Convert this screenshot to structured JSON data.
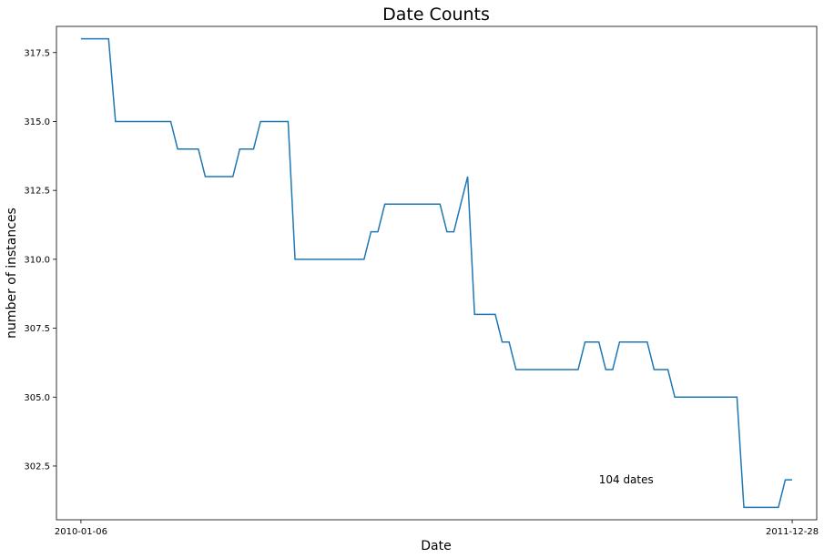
{
  "chart_data": {
    "type": "line",
    "title": "Date Counts",
    "xlabel": "Date",
    "ylabel": "number of instances",
    "x_tick_labels": [
      "2010-01-06",
      "2011-12-28"
    ],
    "x_tick_index": [
      0,
      103
    ],
    "y_ticks": [
      302.5,
      305.0,
      307.5,
      310.0,
      312.5,
      315.0,
      317.5
    ],
    "y_tick_labels": [
      "302.5",
      "305.0",
      "307.5",
      "310.0",
      "312.5",
      "315.0",
      "317.5"
    ],
    "ylim": [
      300.55,
      318.45
    ],
    "xlim": [
      -3.55,
      106.55
    ],
    "grid": false,
    "annotation": {
      "text": "104 dates",
      "x_index": 75,
      "y": 302.0
    },
    "series": [
      {
        "color": "#1f77b4",
        "y": [
          318,
          318,
          318,
          318,
          318,
          315,
          315,
          315,
          315,
          315,
          315,
          315,
          315,
          315,
          314,
          314,
          314,
          314,
          313,
          313,
          313,
          313,
          313,
          314,
          314,
          314,
          315,
          315,
          315,
          315,
          315,
          310,
          310,
          310,
          310,
          310,
          310,
          310,
          310,
          310,
          310,
          310,
          311,
          311,
          312,
          312,
          312,
          312,
          312,
          312,
          312,
          312,
          312,
          311,
          311,
          312,
          313,
          308,
          308,
          308,
          308,
          307,
          307,
          306,
          306,
          306,
          306,
          306,
          306,
          306,
          306,
          306,
          306,
          307,
          307,
          307,
          306,
          306,
          307,
          307,
          307,
          307,
          307,
          306,
          306,
          306,
          305,
          305,
          305,
          305,
          305,
          305,
          305,
          305,
          305,
          305,
          301,
          301,
          301,
          301,
          301,
          301,
          302,
          302
        ]
      }
    ]
  }
}
